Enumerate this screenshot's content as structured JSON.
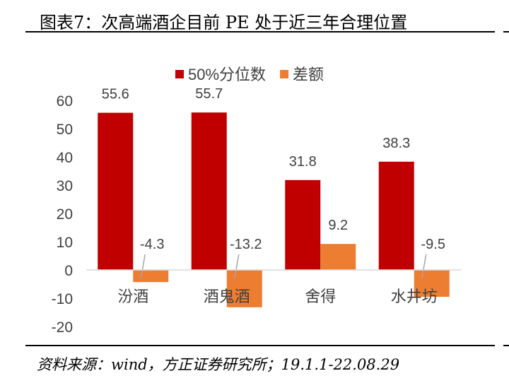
{
  "title": "图表7：次高端酒企目前 PE 处于近三年合理位置",
  "source": "资料来源：wind，方正证券研究所；19.1.1-22.08.29",
  "chart_data": {
    "type": "bar",
    "categories": [
      "汾酒",
      "酒鬼酒",
      "舍得",
      "水井坊"
    ],
    "series": [
      {
        "name": "50%分位数",
        "color": "#C00000",
        "values": [
          55.6,
          55.7,
          31.8,
          38.3
        ],
        "labels": [
          "55.6",
          "55.7",
          "31.8",
          "38.3"
        ]
      },
      {
        "name": "差额",
        "color": "#ED7D31",
        "values": [
          -4.3,
          -13.2,
          9.2,
          -9.5
        ],
        "labels": [
          "-4.3",
          "-13.2",
          "9.2",
          "-9.5"
        ]
      }
    ],
    "ylim": [
      -20,
      60
    ],
    "yticks": [
      "60",
      "50",
      "40",
      "30",
      "20",
      "10",
      "0",
      "-10",
      "-20"
    ],
    "legend": "top",
    "grid": false
  }
}
